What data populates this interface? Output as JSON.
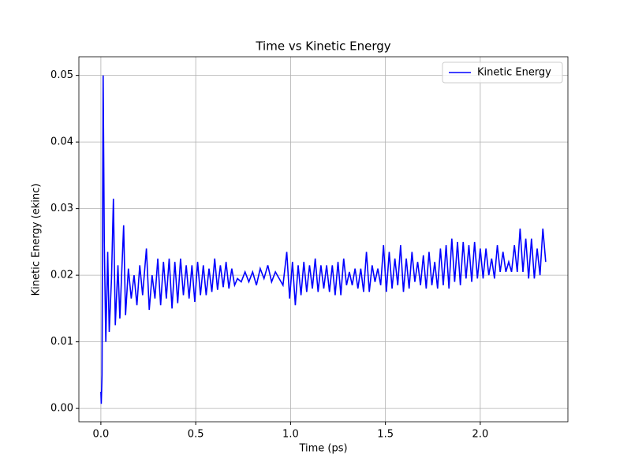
{
  "chart_data": {
    "type": "line",
    "title": "Time vs Kinetic Energy",
    "x_label": "Time (ps)",
    "y_label": "Kinetic Energy (ekinc)",
    "x": [
      0,
      0.002,
      0.006,
      0.012,
      0.018,
      0.026,
      0.036,
      0.044,
      0.056,
      0.066,
      0.076,
      0.09,
      0.1,
      0.12,
      0.13,
      0.145,
      0.16,
      0.175,
      0.19,
      0.205,
      0.22,
      0.24,
      0.255,
      0.27,
      0.285,
      0.3,
      0.315,
      0.33,
      0.345,
      0.36,
      0.375,
      0.39,
      0.405,
      0.42,
      0.435,
      0.45,
      0.465,
      0.48,
      0.495,
      0.51,
      0.525,
      0.54,
      0.555,
      0.57,
      0.585,
      0.6,
      0.615,
      0.63,
      0.645,
      0.66,
      0.675,
      0.69,
      0.705,
      0.72,
      0.74,
      0.76,
      0.78,
      0.8,
      0.82,
      0.84,
      0.86,
      0.88,
      0.9,
      0.92,
      0.94,
      0.96,
      0.98,
      0.995,
      1.01,
      1.025,
      1.04,
      1.055,
      1.07,
      1.085,
      1.1,
      1.115,
      1.13,
      1.145,
      1.16,
      1.175,
      1.19,
      1.205,
      1.22,
      1.235,
      1.25,
      1.265,
      1.28,
      1.295,
      1.31,
      1.325,
      1.34,
      1.355,
      1.37,
      1.385,
      1.4,
      1.415,
      1.43,
      1.445,
      1.46,
      1.475,
      1.49,
      1.505,
      1.52,
      1.535,
      1.55,
      1.565,
      1.58,
      1.595,
      1.61,
      1.625,
      1.64,
      1.655,
      1.67,
      1.685,
      1.7,
      1.715,
      1.73,
      1.745,
      1.76,
      1.775,
      1.79,
      1.805,
      1.82,
      1.835,
      1.85,
      1.865,
      1.88,
      1.895,
      1.91,
      1.925,
      1.94,
      1.955,
      1.97,
      1.985,
      2.0,
      2.015,
      2.03,
      2.045,
      2.06,
      2.075,
      2.09,
      2.105,
      2.12,
      2.135,
      2.15,
      2.165,
      2.18,
      2.195,
      2.21,
      2.225,
      2.24,
      2.255,
      2.27,
      2.285,
      2.3,
      2.315,
      2.33,
      2.345
    ],
    "series": [
      {
        "name": "Kinetic Energy",
        "color": "#0000ff",
        "values": [
          0.0025,
          0.0007,
          0.005,
          0.05,
          0.025,
          0.01,
          0.0235,
          0.0115,
          0.0195,
          0.0315,
          0.0125,
          0.0215,
          0.0135,
          0.0275,
          0.014,
          0.021,
          0.0165,
          0.02,
          0.0155,
          0.0215,
          0.017,
          0.024,
          0.0148,
          0.02,
          0.0165,
          0.0225,
          0.0155,
          0.022,
          0.0165,
          0.0225,
          0.015,
          0.022,
          0.0158,
          0.0225,
          0.017,
          0.0215,
          0.0165,
          0.0215,
          0.016,
          0.022,
          0.017,
          0.0215,
          0.017,
          0.021,
          0.0175,
          0.0225,
          0.0178,
          0.0215,
          0.0182,
          0.022,
          0.018,
          0.021,
          0.0185,
          0.0195,
          0.019,
          0.0205,
          0.019,
          0.0205,
          0.0185,
          0.021,
          0.0195,
          0.0215,
          0.019,
          0.0205,
          0.0195,
          0.0185,
          0.0235,
          0.0165,
          0.022,
          0.0155,
          0.0215,
          0.017,
          0.022,
          0.0175,
          0.0215,
          0.018,
          0.0225,
          0.0175,
          0.0215,
          0.018,
          0.0215,
          0.0175,
          0.0215,
          0.017,
          0.022,
          0.017,
          0.0225,
          0.0185,
          0.0205,
          0.0185,
          0.021,
          0.018,
          0.021,
          0.0175,
          0.0235,
          0.0175,
          0.0215,
          0.019,
          0.021,
          0.0185,
          0.0245,
          0.0175,
          0.0235,
          0.018,
          0.0225,
          0.0185,
          0.0245,
          0.0175,
          0.0225,
          0.018,
          0.0235,
          0.019,
          0.022,
          0.0185,
          0.023,
          0.018,
          0.0235,
          0.0185,
          0.022,
          0.018,
          0.024,
          0.0185,
          0.0245,
          0.018,
          0.0255,
          0.019,
          0.025,
          0.0185,
          0.025,
          0.0195,
          0.0245,
          0.019,
          0.025,
          0.0195,
          0.024,
          0.0195,
          0.024,
          0.02,
          0.0225,
          0.0195,
          0.0245,
          0.0205,
          0.0235,
          0.0205,
          0.022,
          0.0205,
          0.0245,
          0.0205,
          0.027,
          0.0205,
          0.0255,
          0.0195,
          0.0255,
          0.0195,
          0.024,
          0.02,
          0.027,
          0.022
        ]
      }
    ],
    "xlim": [
      -0.116,
      2.462
    ],
    "ylim": [
      -0.002,
      0.0528
    ],
    "xticks": [
      {
        "value": 0,
        "label": "0.0"
      },
      0.5,
      {
        "value": 1,
        "label": "1.0"
      },
      1.5,
      {
        "value": 2,
        "label": "2.0"
      }
    ],
    "yticks": [
      {
        "value": 0,
        "label": "0.00"
      },
      0.01,
      0.02,
      0.03,
      0.04,
      0.05
    ],
    "grid": true,
    "legend": "upper right"
  }
}
